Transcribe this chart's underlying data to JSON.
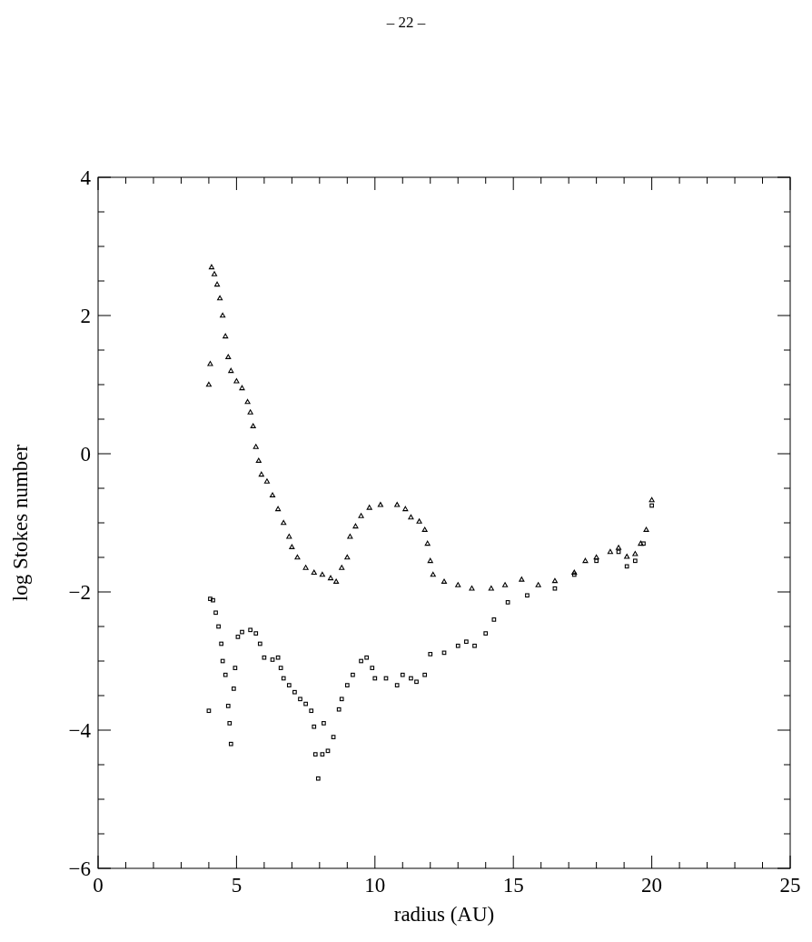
{
  "chart_data": {
    "type": "scatter",
    "xlabel": "radius (AU)",
    "ylabel": "log Stokes number",
    "annotations": [
      "– 22 –"
    ],
    "xlim": [
      0,
      25
    ],
    "ylim": [
      -6,
      4
    ],
    "xticks": [
      0,
      {
        "value": 1,
        "label": null
      },
      {
        "value": 2,
        "label": null
      },
      {
        "value": 3,
        "label": null
      },
      {
        "value": 4,
        "label": null
      },
      5,
      {
        "value": 6,
        "label": null
      },
      {
        "value": 7,
        "label": null
      },
      {
        "value": 8,
        "label": null
      },
      {
        "value": 9,
        "label": null
      },
      10,
      {
        "value": 11,
        "label": null
      },
      {
        "value": 12,
        "label": null
      },
      {
        "value": 13,
        "label": null
      },
      {
        "value": 14,
        "label": null
      },
      15,
      {
        "value": 16,
        "label": null
      },
      {
        "value": 17,
        "label": null
      },
      {
        "value": 18,
        "label": null
      },
      {
        "value": 19,
        "label": null
      },
      20,
      {
        "value": 21,
        "label": null
      },
      {
        "value": 22,
        "label": null
      },
      {
        "value": 23,
        "label": null
      },
      {
        "value": 24,
        "label": null
      },
      25
    ],
    "yticks": [
      -6,
      {
        "value": -5.5,
        "label": null
      },
      {
        "value": -5,
        "label": null
      },
      {
        "value": -4.5,
        "label": null
      },
      -4,
      {
        "value": -3.5,
        "label": null
      },
      {
        "value": -3,
        "label": null
      },
      {
        "value": -2.5,
        "label": null
      },
      -2,
      {
        "value": -1.5,
        "label": null
      },
      {
        "value": -1,
        "label": null
      },
      {
        "value": -0.5,
        "label": null
      },
      0,
      {
        "value": 0.5,
        "label": null
      },
      {
        "value": 1,
        "label": null
      },
      {
        "value": 1.5,
        "label": null
      },
      2,
      {
        "value": 2.5,
        "label": null
      },
      {
        "value": 3,
        "label": null
      },
      {
        "value": 3.5,
        "label": null
      },
      4
    ],
    "grid": false,
    "series": [
      {
        "color": "#000000",
        "marker": "triangle",
        "x": [
          4.0,
          4.05,
          4.1,
          4.2,
          4.3,
          4.4,
          4.5,
          4.6,
          4.7,
          4.8,
          5.0,
          5.2,
          5.4,
          5.5,
          5.6,
          5.7,
          5.8,
          5.9,
          6.1,
          6.3,
          6.5,
          6.7,
          6.9,
          7.0,
          7.2,
          7.5,
          7.8,
          8.1,
          8.4,
          8.6,
          8.8,
          9.0,
          9.1,
          9.3,
          9.5,
          9.8,
          10.2,
          10.8,
          11.1,
          11.3,
          11.6,
          11.8,
          11.9,
          12.0,
          12.1,
          12.5,
          13.0,
          13.5,
          14.2,
          14.7,
          15.3,
          15.9,
          16.5,
          17.2,
          17.6,
          18.0,
          18.5,
          18.8,
          19.1,
          19.4,
          19.6,
          19.8,
          20.0
        ],
        "values": [
          1.0,
          1.3,
          2.7,
          2.6,
          2.45,
          2.25,
          2.0,
          1.7,
          1.4,
          1.2,
          1.05,
          0.95,
          0.75,
          0.6,
          0.4,
          0.1,
          -0.1,
          -0.3,
          -0.4,
          -0.6,
          -0.8,
          -1.0,
          -1.2,
          -1.35,
          -1.5,
          -1.65,
          -1.72,
          -1.75,
          -1.8,
          -1.85,
          -1.65,
          -1.5,
          -1.2,
          -1.05,
          -0.9,
          -0.78,
          -0.74,
          -0.74,
          -0.8,
          -0.92,
          -0.98,
          -1.1,
          -1.3,
          -1.55,
          -1.75,
          -1.85,
          -1.9,
          -1.95,
          -1.95,
          -1.9,
          -1.82,
          -1.9,
          -1.84,
          -1.72,
          -1.55,
          -1.5,
          -1.42,
          -1.36,
          -1.49,
          -1.45,
          -1.3,
          -1.1,
          -0.67
        ]
      },
      {
        "color": "#000000",
        "marker": "square",
        "x": [
          4.0,
          4.05,
          4.15,
          4.25,
          4.35,
          4.45,
          4.5,
          4.6,
          4.7,
          4.75,
          4.8,
          4.9,
          4.95,
          5.05,
          5.2,
          5.5,
          5.7,
          5.85,
          6.0,
          6.3,
          6.5,
          6.6,
          6.7,
          6.9,
          7.1,
          7.3,
          7.5,
          7.7,
          7.8,
          7.85,
          7.95,
          8.1,
          8.15,
          8.3,
          8.5,
          8.7,
          8.8,
          9.0,
          9.2,
          9.5,
          9.7,
          9.9,
          10.0,
          10.4,
          10.8,
          11.0,
          11.3,
          11.5,
          11.8,
          12.0,
          12.5,
          13.0,
          13.3,
          13.6,
          14.0,
          14.3,
          14.8,
          15.5,
          16.5,
          17.2,
          18.0,
          18.8,
          19.1,
          19.4,
          19.7,
          20.0
        ],
        "values": [
          -3.72,
          -2.1,
          -2.12,
          -2.3,
          -2.5,
          -2.75,
          -3.0,
          -3.2,
          -3.65,
          -3.9,
          -4.2,
          -3.4,
          -3.1,
          -2.65,
          -2.58,
          -2.55,
          -2.6,
          -2.75,
          -2.95,
          -2.98,
          -2.95,
          -3.1,
          -3.25,
          -3.35,
          -3.45,
          -3.55,
          -3.62,
          -3.72,
          -3.95,
          -4.35,
          -4.7,
          -4.35,
          -3.9,
          -4.3,
          -4.1,
          -3.7,
          -3.55,
          -3.35,
          -3.2,
          -3.0,
          -2.95,
          -3.1,
          -3.25,
          -3.25,
          -3.35,
          -3.2,
          -3.25,
          -3.3,
          -3.2,
          -2.9,
          -2.88,
          -2.78,
          -2.72,
          -2.78,
          -2.6,
          -2.4,
          -2.15,
          -2.05,
          -1.95,
          -1.75,
          -1.55,
          -1.42,
          -1.63,
          -1.55,
          -1.3,
          -0.75
        ]
      }
    ]
  }
}
